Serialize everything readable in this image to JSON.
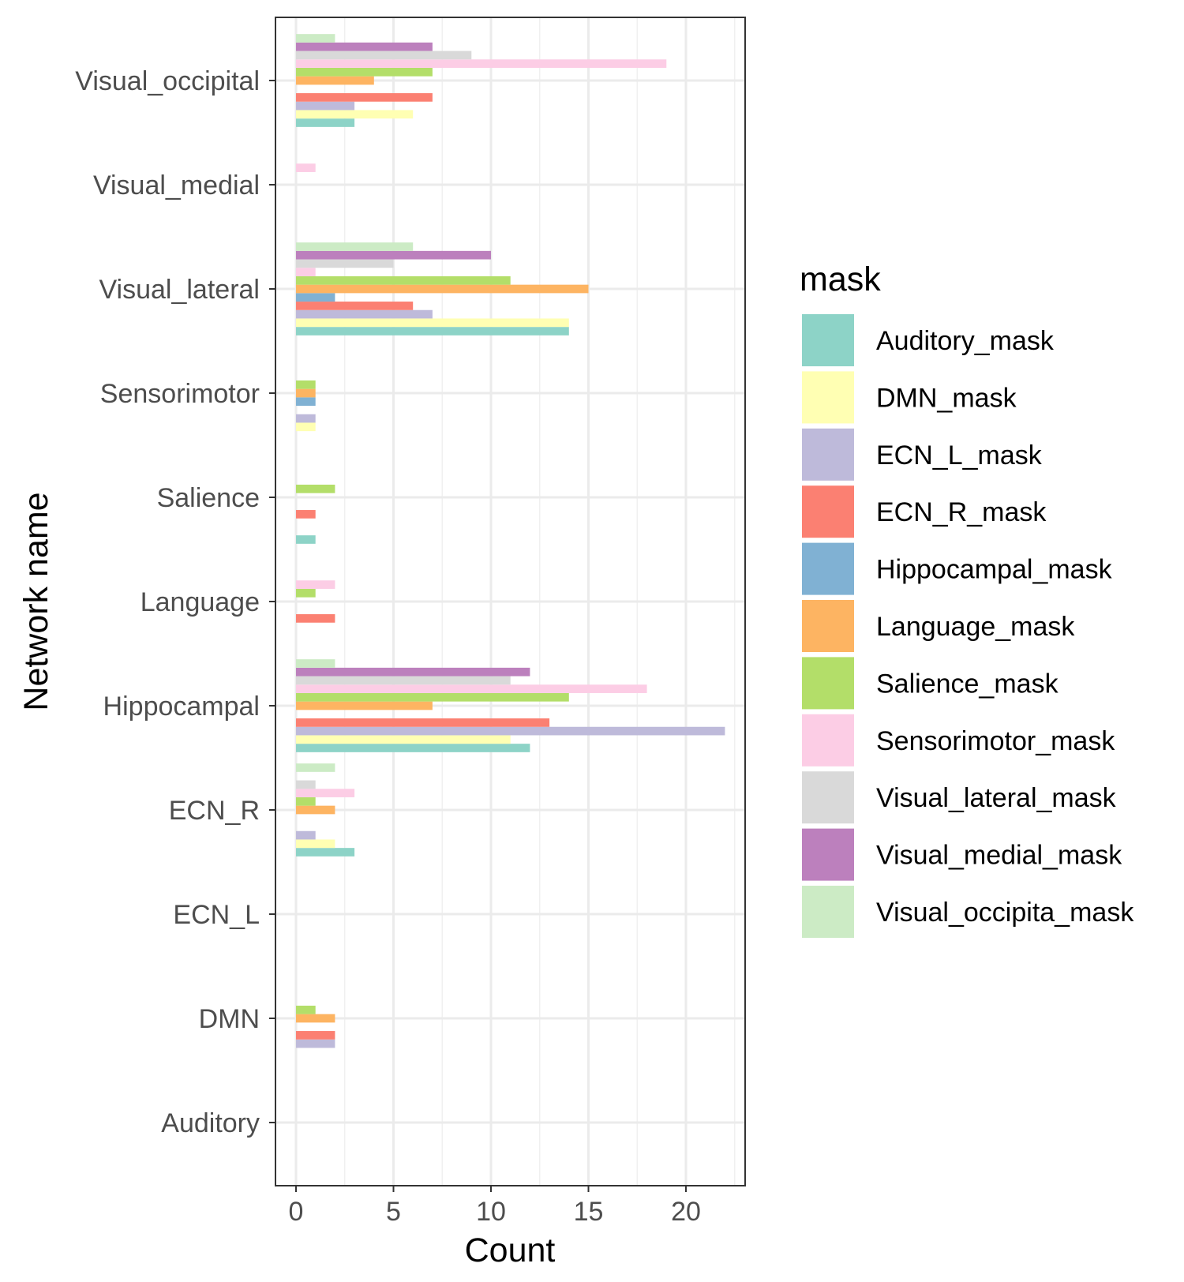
{
  "chart_data": {
    "type": "bar",
    "orientation": "horizontal",
    "xlabel": "Count",
    "ylabel": "Network name",
    "xlim": [
      -1,
      23
    ],
    "x_ticks": [
      0,
      5,
      10,
      15,
      20
    ],
    "grid": true,
    "legend_position": "right",
    "legend_title": "mask",
    "categories": [
      "Auditory",
      "DMN",
      "ECN_L",
      "ECN_R",
      "Hippocampal",
      "Language",
      "Salience",
      "Sensorimotor",
      "Visual_lateral",
      "Visual_medial",
      "Visual_occipital"
    ],
    "series": [
      {
        "name": "Auditory_mask",
        "color": "#8DD3C7",
        "values": [
          0,
          0,
          0,
          3,
          12,
          0,
          1,
          0,
          14,
          0,
          3
        ]
      },
      {
        "name": "DMN_mask",
        "color": "#FFFFB3",
        "values": [
          0,
          0,
          0,
          2,
          11,
          0,
          0,
          1,
          14,
          0,
          6
        ]
      },
      {
        "name": "ECN_L_mask",
        "color": "#BEBADA",
        "values": [
          0,
          2,
          0,
          1,
          22,
          0,
          0,
          1,
          7,
          0,
          3
        ]
      },
      {
        "name": "ECN_R_mask",
        "color": "#FB8072",
        "values": [
          0,
          2,
          0,
          0,
          13,
          2,
          1,
          0,
          6,
          0,
          7
        ]
      },
      {
        "name": "Hippocampal_mask",
        "color": "#80B1D3",
        "values": [
          0,
          0,
          0,
          0,
          0,
          0,
          0,
          1,
          2,
          0,
          0
        ]
      },
      {
        "name": "Language_mask",
        "color": "#FDB462",
        "values": [
          0,
          2,
          0,
          2,
          7,
          0,
          0,
          1,
          15,
          0,
          4
        ]
      },
      {
        "name": "Salience_mask",
        "color": "#B3DE69",
        "values": [
          0,
          1,
          0,
          1,
          14,
          1,
          2,
          1,
          11,
          0,
          7
        ]
      },
      {
        "name": "Sensorimotor_mask",
        "color": "#FCCDE5",
        "values": [
          0,
          0,
          0,
          3,
          18,
          2,
          0,
          0,
          1,
          1,
          19
        ]
      },
      {
        "name": "Visual_lateral_mask",
        "color": "#D9D9D9",
        "values": [
          0,
          0,
          0,
          1,
          11,
          0,
          0,
          0,
          5,
          0,
          9
        ]
      },
      {
        "name": "Visual_medial_mask",
        "color": "#BC80BD",
        "values": [
          0,
          0,
          0,
          0,
          12,
          0,
          0,
          0,
          10,
          0,
          7
        ]
      },
      {
        "name": "Visual_occipita_mask",
        "color": "#CCEBC5",
        "values": [
          0,
          0,
          0,
          2,
          2,
          0,
          0,
          0,
          6,
          0,
          2
        ]
      }
    ]
  }
}
